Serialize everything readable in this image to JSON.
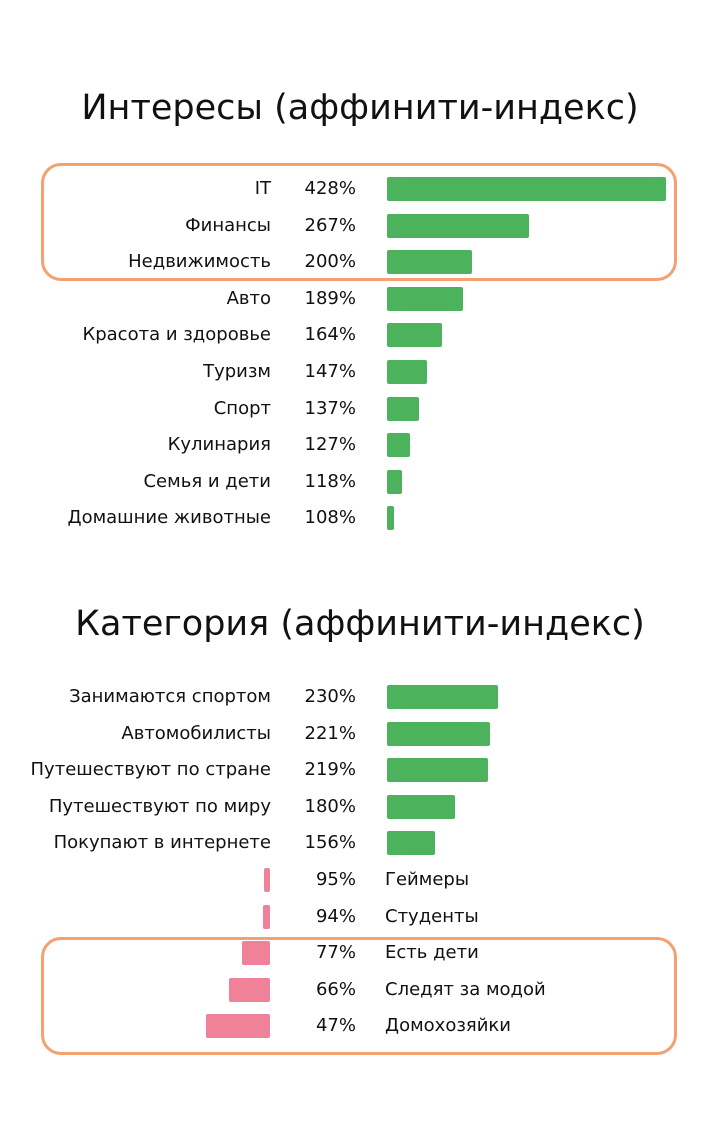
{
  "chart_data": [
    {
      "type": "bar",
      "orientation": "horizontal",
      "title": "Интересы (аффинити-индекс)",
      "baseline": 100,
      "colors": {
        "positive": "#4db25c",
        "negative": "#ef8199",
        "highlight": "#f5a070"
      },
      "highlight_groups": [
        [
          0,
          2
        ]
      ],
      "categories": [
        "IT",
        "Финансы",
        "Недвижимость",
        "Авто",
        "Красота и здоровье",
        "Туризм",
        "Спорт",
        "Кулинария",
        "Семья и дети",
        "Домашние животные"
      ],
      "values": [
        428,
        267,
        200,
        189,
        164,
        147,
        137,
        127,
        118,
        108
      ],
      "value_labels": [
        "428%",
        "267%",
        "200%",
        "189%",
        "164%",
        "147%",
        "137%",
        "127%",
        "118%",
        "108%"
      ]
    },
    {
      "type": "bar",
      "orientation": "horizontal",
      "title": "Категория (аффинити-индекс)",
      "baseline": 100,
      "colors": {
        "positive": "#4db25c",
        "negative": "#ef8199",
        "highlight": "#f5a070"
      },
      "highlight_groups": [
        [
          7,
          9
        ]
      ],
      "categories": [
        "Занимаются спортом",
        "Автомобилисты",
        "Путешествуют по стране",
        "Путешествуют по миру",
        "Покупают в интернете",
        "Геймеры",
        "Студенты",
        "Есть дети",
        "Следят за модой",
        "Домохозяйки"
      ],
      "values": [
        230,
        221,
        219,
        180,
        156,
        95,
        94,
        77,
        66,
        47
      ],
      "value_labels": [
        "230%",
        "221%",
        "219%",
        "180%",
        "156%",
        "95%",
        "94%",
        "77%",
        "66%",
        "47%"
      ]
    }
  ]
}
